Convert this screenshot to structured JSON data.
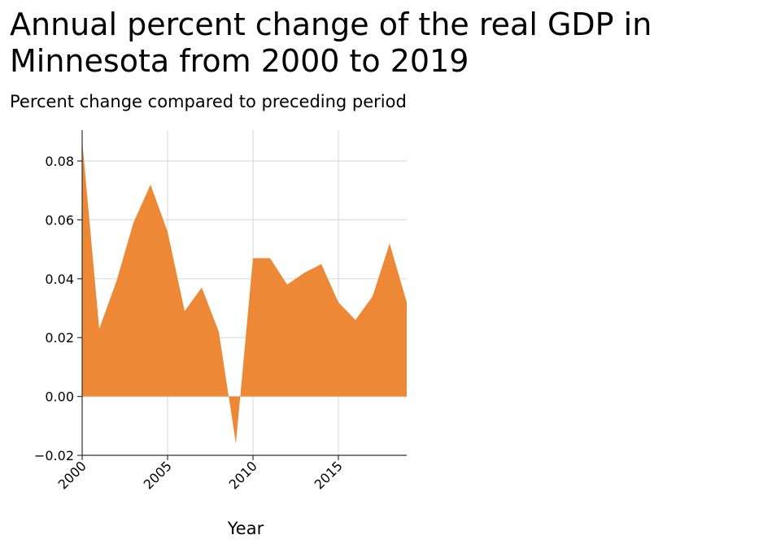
{
  "header": {
    "title_line1": "Annual percent change of the real GDP in",
    "title_line2": "Minnesota from 2000 to 2019",
    "subtitle": "Percent change compared to preceding period"
  },
  "chart_data": {
    "type": "area",
    "title": "Annual percent change of the real GDP in Minnesota from 2000 to 2019",
    "subtitle": "Percent change compared to preceding period",
    "xlabel": "Year",
    "ylabel": "",
    "x": [
      2000,
      2001,
      2002,
      2003,
      2004,
      2005,
      2006,
      2007,
      2008,
      2009,
      2010,
      2011,
      2012,
      2013,
      2014,
      2015,
      2016,
      2017,
      2018,
      2019
    ],
    "series": [
      {
        "values": [
          0.087,
          0.023,
          0.039,
          0.059,
          0.072,
          0.056,
          0.029,
          0.037,
          0.022,
          -0.016,
          0.047,
          0.047,
          0.038,
          0.042,
          0.045,
          0.032,
          0.026,
          0.034,
          0.052,
          0.032
        ]
      }
    ],
    "xlim": [
      2000,
      2019
    ],
    "ylim": [
      -0.02,
      0.0905
    ],
    "xticks": [
      2000,
      2005,
      2010,
      2015
    ],
    "xtick_labels": [
      "2000",
      "2005",
      "2010",
      "2015"
    ],
    "yticks": [
      -0.02,
      0.0,
      0.02,
      0.04,
      0.06,
      0.08
    ],
    "ytick_labels": [
      "−0.02",
      "0.00",
      "0.02",
      "0.04",
      "0.06",
      "0.08"
    ],
    "grid": true,
    "legend": "none",
    "colors": {
      "fill": "#ed8936",
      "grid": "#dcdcdc",
      "axis": "#333333"
    }
  }
}
